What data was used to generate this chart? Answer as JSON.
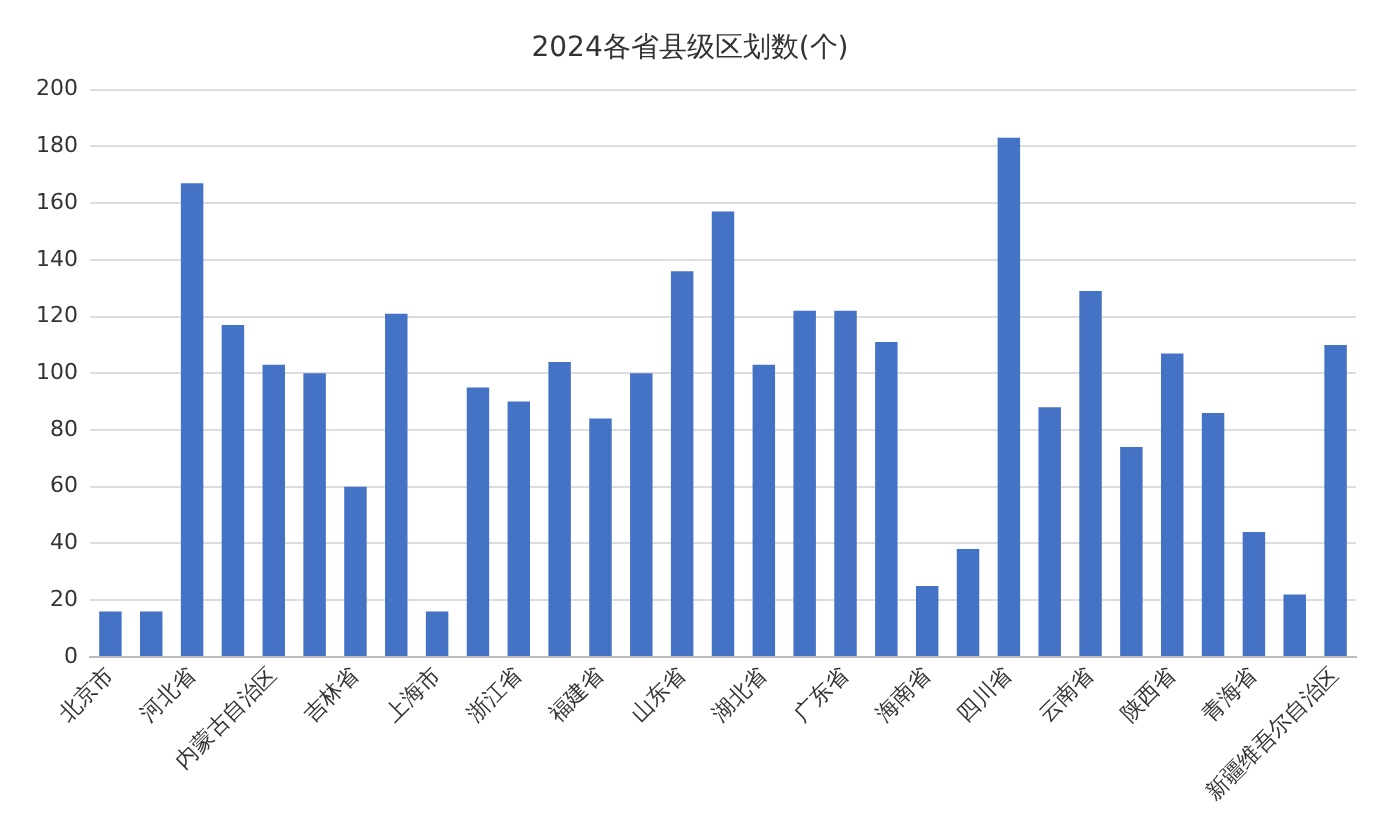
{
  "chart_data": {
    "type": "bar",
    "title": "2024各省县级区划数(个)",
    "categories": [
      "北京市",
      null,
      "河北省",
      null,
      "内蒙古自治区",
      null,
      "吉林省",
      null,
      "上海市",
      null,
      "浙江省",
      null,
      "福建省",
      null,
      "山东省",
      null,
      "湖北省",
      null,
      "广东省",
      null,
      "海南省",
      null,
      "四川省",
      null,
      "云南省",
      null,
      "陕西省",
      null,
      "青海省",
      null,
      "新疆维吾尔自治区"
    ],
    "values": [
      16,
      16,
      167,
      117,
      103,
      100,
      60,
      121,
      16,
      95,
      90,
      104,
      84,
      100,
      136,
      157,
      103,
      122,
      122,
      111,
      25,
      38,
      183,
      88,
      129,
      74,
      107,
      86,
      44,
      22,
      110
    ],
    "color": "#4472c4",
    "ylim": [
      0,
      200
    ],
    "yticks": [
      0,
      20,
      40,
      60,
      80,
      100,
      120,
      140,
      160,
      180,
      200
    ],
    "grid": "y",
    "legend": false
  }
}
